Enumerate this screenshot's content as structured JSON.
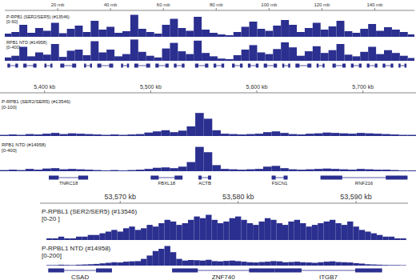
{
  "chart_data": [
    {
      "type": "bar",
      "xlim": [
        0,
        155
      ],
      "xticks": [
        {
          "value": 20,
          "label": "20 mb"
        },
        {
          "value": 40,
          "label": "40 mb"
        },
        {
          "value": 60,
          "label": "60 mb"
        },
        {
          "value": 80,
          "label": "80 mb"
        },
        {
          "value": 100,
          "label": "100 mb"
        },
        {
          "value": 120,
          "label": "120 mb"
        },
        {
          "value": 140,
          "label": "140 mb"
        }
      ],
      "x": [
        1,
        4,
        7,
        10,
        13,
        16,
        19,
        22,
        25,
        28,
        31,
        34,
        37,
        40,
        43,
        46,
        49,
        52,
        55,
        58,
        61,
        64,
        67,
        70,
        73,
        76,
        79,
        82,
        85,
        88,
        91,
        94,
        97,
        100,
        103,
        106,
        109,
        112,
        115,
        118,
        121,
        124,
        127,
        130,
        133,
        136,
        139,
        142,
        145,
        148,
        151,
        154
      ],
      "series": [
        {
          "name": "P-RPB1 (SER2/SER5) (#13546)",
          "range_label": "[0-60]",
          "ylim": [
            0,
            60
          ],
          "color": "#2b2f8f",
          "values": [
            8,
            12,
            30,
            10,
            22,
            15,
            35,
            9,
            20,
            28,
            12,
            40,
            18,
            25,
            10,
            14,
            55,
            20,
            12,
            8,
            30,
            45,
            22,
            15,
            50,
            18,
            10,
            6,
            4,
            12,
            25,
            38,
            20,
            15,
            28,
            42,
            30,
            12,
            22,
            35,
            18,
            26,
            40,
            14,
            10,
            20,
            32,
            15,
            24,
            18,
            12,
            6
          ]
        },
        {
          "name": "RPB1 NTD (#14958)",
          "range_label": "[0-400]",
          "ylim": [
            0,
            400
          ],
          "color": "#2b2f8f",
          "values": [
            60,
            90,
            250,
            80,
            150,
            110,
            300,
            70,
            180,
            200,
            100,
            350,
            150,
            200,
            80,
            120,
            380,
            160,
            90,
            60,
            220,
            320,
            170,
            120,
            360,
            140,
            80,
            40,
            30,
            100,
            200,
            280,
            150,
            120,
            210,
            330,
            240,
            90,
            170,
            260,
            140,
            190,
            300,
            110,
            80,
            160,
            250,
            120,
            190,
            140,
            90,
            50
          ]
        }
      ],
      "genes": [
        {
          "start": 1,
          "end": 5
        },
        {
          "start": 7,
          "end": 12
        },
        {
          "start": 15,
          "end": 18
        },
        {
          "start": 21,
          "end": 27
        },
        {
          "start": 30,
          "end": 33
        },
        {
          "start": 35,
          "end": 41
        },
        {
          "start": 44,
          "end": 47
        },
        {
          "start": 49,
          "end": 55
        },
        {
          "start": 57,
          "end": 62
        },
        {
          "start": 64,
          "end": 68
        },
        {
          "start": 72,
          "end": 77
        },
        {
          "start": 79,
          "end": 83
        },
        {
          "start": 86,
          "end": 90
        },
        {
          "start": 92,
          "end": 96
        },
        {
          "start": 98,
          "end": 103
        },
        {
          "start": 105,
          "end": 108
        },
        {
          "start": 110,
          "end": 116
        },
        {
          "start": 118,
          "end": 121
        },
        {
          "start": 124,
          "end": 129
        },
        {
          "start": 131,
          "end": 135
        },
        {
          "start": 137,
          "end": 141
        },
        {
          "start": 143,
          "end": 147
        },
        {
          "start": 149,
          "end": 152
        }
      ]
    },
    {
      "type": "bar",
      "xlim": [
        5358,
        5750
      ],
      "xticks": [
        {
          "value": 5400,
          "label": "5,400 kb"
        },
        {
          "value": 5500,
          "label": "5,500 kb"
        },
        {
          "value": 5600,
          "label": "5,600 kb"
        },
        {
          "value": 5700,
          "label": "5,700 kb"
        }
      ],
      "x": [
        5362,
        5370,
        5378,
        5386,
        5394,
        5402,
        5410,
        5418,
        5426,
        5434,
        5442,
        5450,
        5458,
        5466,
        5474,
        5482,
        5490,
        5498,
        5506,
        5514,
        5522,
        5530,
        5538,
        5546,
        5554,
        5562,
        5570,
        5578,
        5586,
        5594,
        5602,
        5610,
        5618,
        5626,
        5634,
        5642,
        5650,
        5658,
        5666,
        5674,
        5682,
        5690,
        5698,
        5706,
        5714,
        5722,
        5730,
        5738,
        5746
      ],
      "series": [
        {
          "name": "P-RPB1 (SER2/SER5) (#13546)",
          "range_label": "[0-100]",
          "ylim": [
            0,
            100
          ],
          "color": "#2b2f8f",
          "values": [
            3,
            4,
            3,
            5,
            4,
            6,
            8,
            5,
            7,
            6,
            5,
            4,
            3,
            4,
            3,
            4,
            5,
            9,
            12,
            15,
            10,
            14,
            25,
            60,
            45,
            15,
            6,
            5,
            4,
            5,
            6,
            10,
            12,
            8,
            5,
            4,
            6,
            7,
            9,
            8,
            7,
            6,
            8,
            7,
            6,
            5,
            4,
            3,
            3
          ]
        },
        {
          "name": "RPB1 NTD (#14958)",
          "range_label": "[0-400]",
          "ylim": [
            0,
            400
          ],
          "color": "#2b2f8f",
          "values": [
            15,
            20,
            15,
            30,
            20,
            35,
            40,
            25,
            30,
            25,
            20,
            15,
            10,
            15,
            10,
            15,
            20,
            30,
            45,
            50,
            40,
            60,
            120,
            320,
            250,
            80,
            30,
            25,
            20,
            25,
            30,
            60,
            70,
            40,
            25,
            20,
            25,
            30,
            35,
            30,
            25,
            20,
            30,
            25,
            20,
            20,
            15,
            10,
            10
          ]
        }
      ],
      "genes": [
        {
          "label": "TNRC18",
          "start": 5404,
          "end": 5441
        },
        {
          "label": "FBXL18",
          "start": 5500,
          "end": 5530
        },
        {
          "label": "ACTB",
          "start": 5545,
          "end": 5557
        },
        {
          "label": "FSCN1",
          "start": 5614,
          "end": 5629
        },
        {
          "label": "RNF216",
          "start": 5660,
          "end": 5742
        }
      ]
    },
    {
      "type": "bar",
      "xlim": [
        53563.2,
        53594.4
      ],
      "xticks": [
        {
          "value": 53570,
          "label": "53,570 kb"
        },
        {
          "value": 53580,
          "label": "53,580 kb"
        },
        {
          "value": 53590,
          "label": "53,590 kb"
        }
      ],
      "x": [
        53564,
        53564.5,
        53565,
        53565.5,
        53566,
        53566.5,
        53567,
        53567.5,
        53568,
        53568.5,
        53569,
        53569.5,
        53570,
        53570.5,
        53571,
        53571.5,
        53572,
        53572.5,
        53573,
        53573.5,
        53574,
        53574.5,
        53575,
        53575.5,
        53576,
        53576.5,
        53577,
        53577.5,
        53578,
        53578.5,
        53579,
        53579.5,
        53580,
        53580.5,
        53581,
        53581.5,
        53582,
        53582.5,
        53583,
        53583.5,
        53584,
        53584.5,
        53585,
        53585.5,
        53586,
        53586.5,
        53587,
        53587.5,
        53588,
        53588.5,
        53589,
        53589.5,
        53590,
        53590.5,
        53591,
        53591.5,
        53592,
        53592.5,
        53593,
        53593.5,
        53594
      ],
      "series": [
        {
          "name": "P-RPBL1 (SER2/SER5) (#13546)",
          "range_label": "[0-20 ]",
          "ylim": [
            0,
            20
          ],
          "color": "#2b2f8f",
          "values": [
            1,
            1,
            2,
            1,
            1,
            2,
            2,
            3,
            3,
            4,
            5,
            6,
            5,
            7,
            8,
            6,
            7,
            9,
            8,
            10,
            12,
            11,
            9,
            10,
            12,
            14,
            13,
            15,
            12,
            10,
            11,
            13,
            14,
            12,
            10,
            9,
            11,
            13,
            12,
            10,
            9,
            11,
            12,
            10,
            8,
            9,
            10,
            11,
            12,
            10,
            9,
            11,
            8,
            6,
            5,
            4,
            3,
            2,
            2,
            1,
            1
          ]
        },
        {
          "name": "P-RPBL1 NTD (#14958)",
          "range_label": "[0-200]",
          "ylim": [
            0,
            200
          ],
          "color": "#2b2f8f",
          "values": [
            5,
            5,
            8,
            6,
            5,
            8,
            10,
            12,
            15,
            20,
            25,
            30,
            28,
            35,
            38,
            40,
            60,
            90,
            130,
            150,
            175,
            120,
            60,
            45,
            50,
            48,
            45,
            52,
            40,
            38,
            42,
            45,
            40,
            35,
            30,
            28,
            32,
            35,
            40,
            38,
            30,
            32,
            35,
            30,
            28,
            25,
            30,
            35,
            38,
            32,
            30,
            28,
            22,
            18,
            12,
            10,
            8,
            6,
            5,
            5,
            4
          ]
        }
      ],
      "genes": [
        {
          "label": "CSAD",
          "start": 53563.9,
          "end": 53569.3
        },
        {
          "label": "ZNF740",
          "start": 53574.4,
          "end": 53583.1
        },
        {
          "label": "ITGB7",
          "start": 53583.1,
          "end": 53592.2
        }
      ]
    }
  ]
}
